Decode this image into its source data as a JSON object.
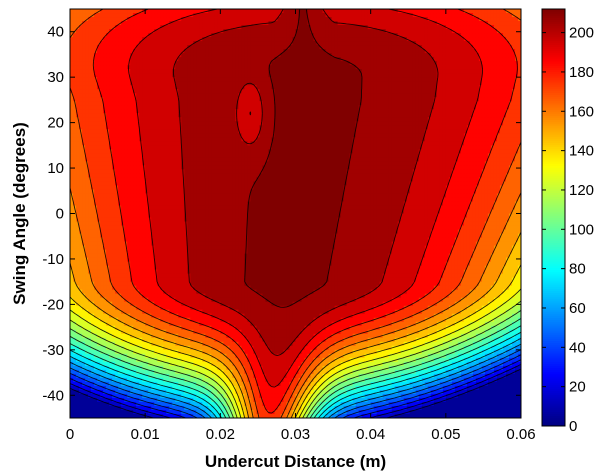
{
  "chart_data": {
    "type": "filled-contour",
    "title": "",
    "xlabel": "Undercut Distance (m)",
    "ylabel": "Swing Angle (degrees)",
    "xlim": [
      0,
      0.06
    ],
    "ylim": [
      -45,
      45
    ],
    "x_ticks": [
      {
        "value": 0,
        "label": "0"
      },
      {
        "value": 0.01,
        "label": "0.01"
      },
      {
        "value": 0.02,
        "label": "0.02"
      },
      {
        "value": 0.03,
        "label": "0.03"
      },
      {
        "value": 0.04,
        "label": "0.04"
      },
      {
        "value": 0.05,
        "label": "0.05"
      },
      {
        "value": 0.06,
        "label": "0.06"
      }
    ],
    "y_ticks": [
      {
        "value": 40,
        "label": "40"
      },
      {
        "value": 30,
        "label": "30"
      },
      {
        "value": 20,
        "label": "20"
      },
      {
        "value": 10,
        "label": "10"
      },
      {
        "value": 0,
        "label": "0"
      },
      {
        "value": -10,
        "label": "-10"
      },
      {
        "value": -20,
        "label": "-20"
      },
      {
        "value": -30,
        "label": "-30"
      },
      {
        "value": -40,
        "label": "-40"
      }
    ],
    "colorbar": {
      "colormap": "jet",
      "range": [
        0,
        212
      ],
      "ticks": [
        {
          "value": 0,
          "label": "0"
        },
        {
          "value": 20,
          "label": "20"
        },
        {
          "value": 40,
          "label": "40"
        },
        {
          "value": 60,
          "label": "60"
        },
        {
          "value": 80,
          "label": "80"
        },
        {
          "value": 100,
          "label": "100"
        },
        {
          "value": 120,
          "label": "120"
        },
        {
          "value": 140,
          "label": "140"
        },
        {
          "value": 160,
          "label": "160"
        },
        {
          "value": 180,
          "label": "180"
        },
        {
          "value": 200,
          "label": "200"
        }
      ]
    },
    "contour_step": 10,
    "peak": {
      "x": 0.0315,
      "y": 25,
      "value": 212
    },
    "ridge_centers": [
      {
        "y": 45,
        "x": 0.031
      },
      {
        "y": 25,
        "x": 0.0315
      },
      {
        "y": 0,
        "x": 0.029
      },
      {
        "y": -25,
        "x": 0.0275
      },
      {
        "y": -45,
        "x": 0.027
      }
    ],
    "grid": false,
    "legend": "colorbar-right"
  }
}
